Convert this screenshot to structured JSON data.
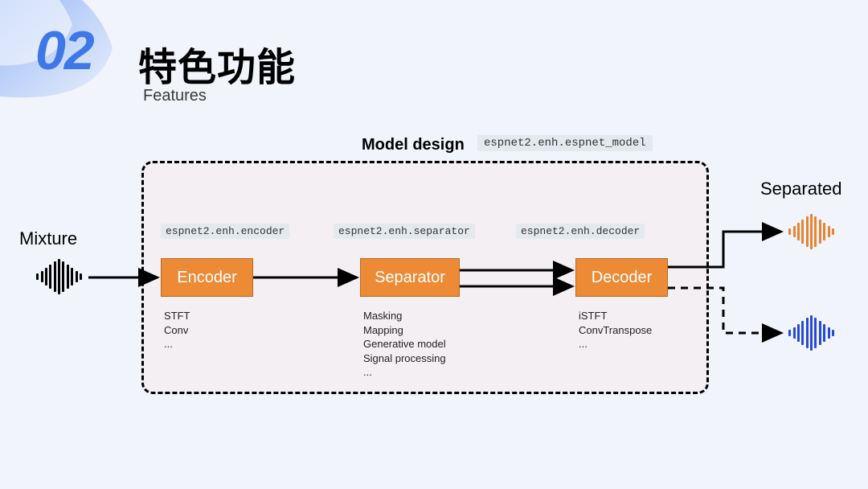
{
  "header": {
    "section_number": "02",
    "title_cn": "特色功能",
    "title_en": "Features"
  },
  "diagram": {
    "title": "Model design",
    "main_module": "espnet2.enh.espnet_model",
    "input_label": "Mixture",
    "output_label": "Separated",
    "blocks": {
      "encoder": {
        "label": "Encoder",
        "module": "espnet2.enh.encoder",
        "items": [
          "STFT",
          "Conv",
          "..."
        ]
      },
      "separator": {
        "label": "Separator",
        "module": "espnet2.enh.separator",
        "items": [
          "Masking",
          "Mapping",
          "Generative model",
          "Signal processing",
          "..."
        ]
      },
      "decoder": {
        "label": "Decoder",
        "module": "espnet2.enh.decoder",
        "items": [
          "iSTFT",
          "ConvTranspose",
          "..."
        ]
      }
    }
  },
  "style": {
    "background": "#f2f4fb",
    "accent": "#3d77e8",
    "block_fill": "#ec8a35",
    "block_border": "#b96a22",
    "tag_bg": "#e4e9ee",
    "dashed_bg": "#f3eff3",
    "wave_black": "#000000",
    "wave_orange": "#e8832f",
    "wave_blue": "#2649d6",
    "corner_gradient": [
      "#6f9cf3",
      "#c9d9fb"
    ]
  },
  "waveform": {
    "heights": [
      8,
      14,
      22,
      30,
      38,
      44,
      38,
      30,
      22,
      14,
      8
    ]
  }
}
